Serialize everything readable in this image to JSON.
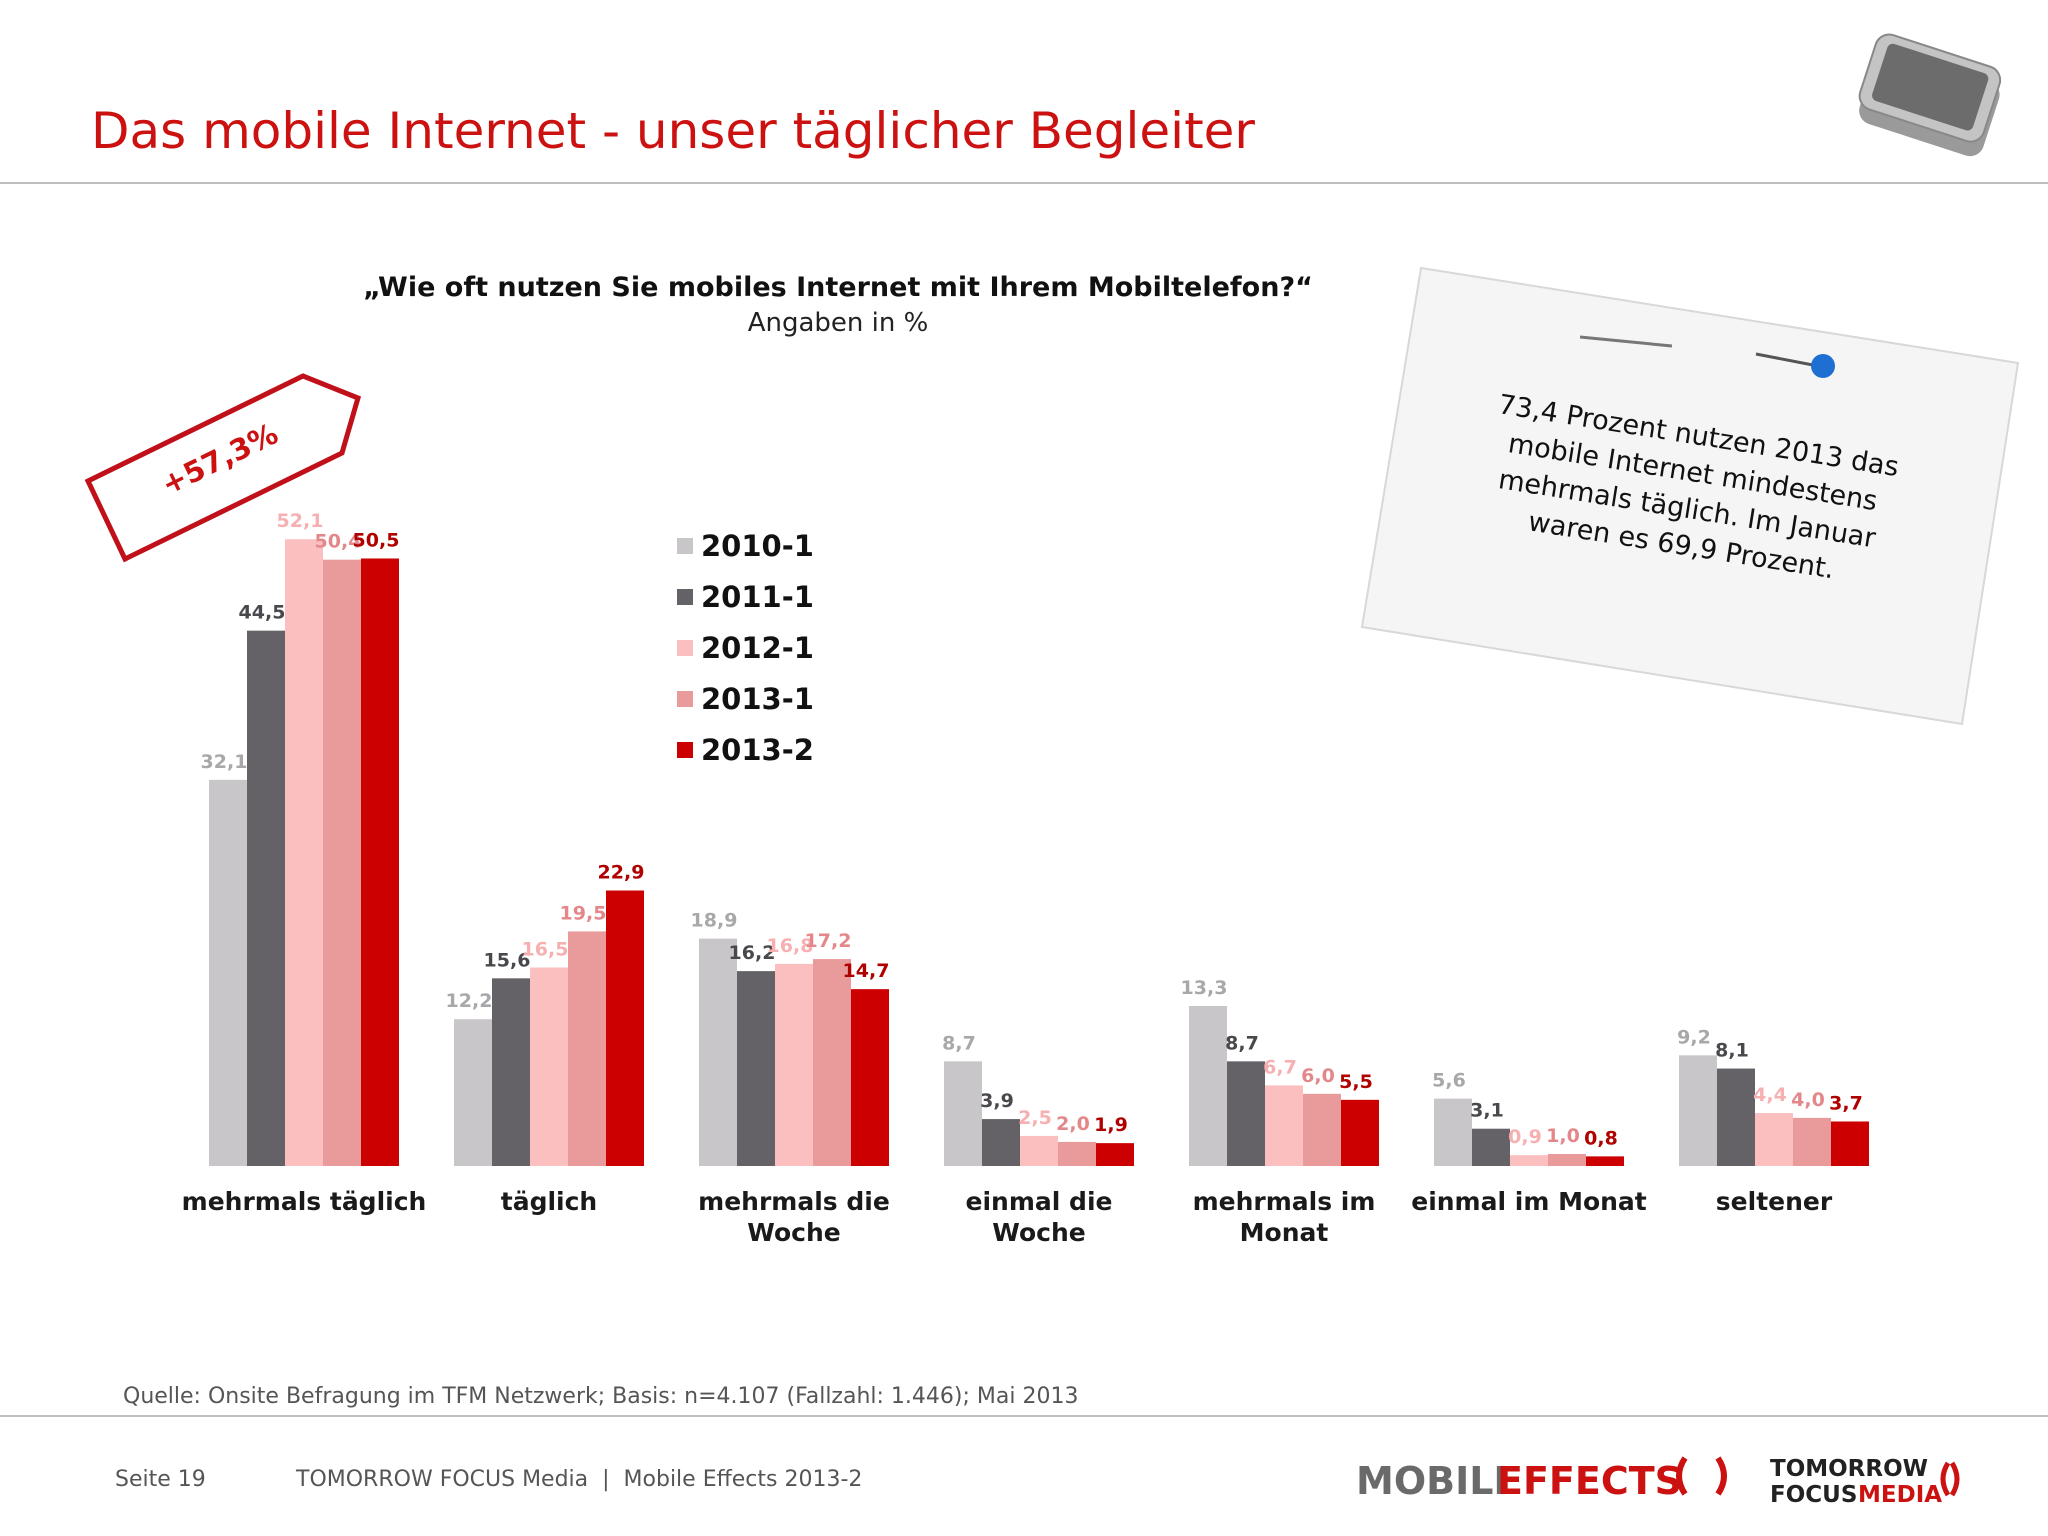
{
  "slide": {
    "title": "Das mobile Internet - unser täglicher Begleiter",
    "note": [
      "73,4 Prozent nutzen 2013 das",
      "mobile Internet mindestens",
      "mehrmals täglich. Im Januar",
      "waren es 69,9 Prozent."
    ],
    "source": "Quelle: Onsite Befragung im TFM Netzwerk; Basis: n=4.107 (Fallzahl: 1.446); Mai 2013",
    "page": "Seite 19",
    "footer": "TOMORROW FOCUS Media  |  Mobile Effects 2013-2",
    "logo_mobile": "MOBILE",
    "logo_effects": "EFFECTS",
    "logo_tomorrow": "TOMORROW",
    "logo_focus": "FOCUS",
    "logo_media": "MEDIA"
  },
  "chart_data": {
    "type": "bar",
    "title": "„Wie oft nutzen Sie mobiles Internet mit Ihrem Mobiltelefon?“",
    "subtitle": "Angaben in %",
    "annotation": "+57,3%",
    "categories": [
      "mehrmals täglich",
      "täglich",
      "mehrmals die\nWoche",
      "einmal die\nWoche",
      "mehrmals im\nMonat",
      "einmal im Monat",
      "seltener"
    ],
    "series": [
      {
        "name": "2010-1",
        "color": "#c8c6c8",
        "label_color": "#a9a7a9",
        "values": [
          32.1,
          12.2,
          18.9,
          8.7,
          13.3,
          5.6,
          9.2
        ],
        "value_labels": [
          "32,1",
          "12,2",
          "18,9",
          "8,7",
          "13,3",
          "5,6",
          "9,2"
        ]
      },
      {
        "name": "2011-1",
        "color": "#646266",
        "label_color": "#4a484c",
        "values": [
          44.5,
          15.6,
          16.2,
          3.9,
          8.7,
          3.1,
          8.1
        ],
        "value_labels": [
          "44,5",
          "15,6",
          "16,2",
          "3,9",
          "8,7",
          "3,1",
          "8,1"
        ]
      },
      {
        "name": "2012-1",
        "color": "#fbbfc0",
        "label_color": "#f7b0b2",
        "values": [
          52.1,
          16.5,
          16.8,
          2.5,
          6.7,
          0.9,
          4.4
        ],
        "value_labels": [
          "52,1",
          "16,5",
          "16,8",
          "2,5",
          "6,7",
          "0,9",
          "4,4"
        ]
      },
      {
        "name": "2013-1",
        "color": "#e99a9b",
        "label_color": "#e3878a",
        "values": [
          50.4,
          19.5,
          17.2,
          2.0,
          6.0,
          1.0,
          4.0
        ],
        "value_labels": [
          "50,4",
          "19,5",
          "17,2",
          "2,0",
          "6,0",
          "1,0",
          "4,0"
        ]
      },
      {
        "name": "2013-2",
        "color": "#cc0000",
        "label_color": "#b00000",
        "values": [
          50.5,
          22.9,
          14.7,
          1.9,
          5.5,
          0.8,
          3.7
        ],
        "value_labels": [
          "50,5",
          "22,9",
          "14,7",
          "1,9",
          "5,5",
          "0,8",
          "3,7"
        ]
      }
    ]
  }
}
